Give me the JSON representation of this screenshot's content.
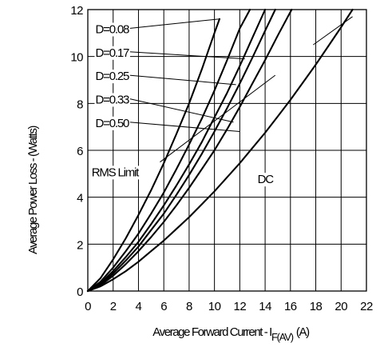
{
  "chart_data": {
    "type": "line",
    "title": "",
    "xlabel": "Average Forward Current - I",
    "xlabel_subscript": "F(AV)",
    "xlabel_unit": "(A)",
    "ylabel": "Average Power Loss - (Watts)",
    "xlim": [
      0,
      22
    ],
    "ylim": [
      0,
      12
    ],
    "x_ticks": [
      "0",
      "2",
      "4",
      "6",
      "8",
      "10",
      "12",
      "14",
      "16",
      "18",
      "20",
      "22"
    ],
    "y_ticks": [
      "0",
      "2",
      "4",
      "6",
      "8",
      "10",
      "12"
    ],
    "grid": true,
    "series": [
      {
        "name": "D=0.08",
        "points": [
          [
            0,
            0
          ],
          [
            1,
            0.55
          ],
          [
            2,
            1.35
          ],
          [
            3,
            2.25
          ],
          [
            4,
            3.25
          ],
          [
            5,
            4.3
          ],
          [
            6,
            5.45
          ],
          [
            7,
            6.7
          ],
          [
            8,
            8.0
          ],
          [
            9,
            9.45
          ],
          [
            10,
            11.0
          ],
          [
            10.4,
            11.6
          ]
        ]
      },
      {
        "name": "D=0.17",
        "points": [
          [
            0,
            0
          ],
          [
            1,
            0.4
          ],
          [
            2,
            1.0
          ],
          [
            3,
            1.7
          ],
          [
            4,
            2.45
          ],
          [
            5,
            3.3
          ],
          [
            6,
            4.2
          ],
          [
            7,
            5.2
          ],
          [
            8,
            6.25
          ],
          [
            9,
            7.35
          ],
          [
            10,
            8.55
          ],
          [
            11,
            9.85
          ],
          [
            12,
            11.2
          ],
          [
            12.8,
            12.0
          ]
        ]
      },
      {
        "name": "D=0.25",
        "points": [
          [
            0,
            0
          ],
          [
            1,
            0.33
          ],
          [
            2,
            0.85
          ],
          [
            3,
            1.45
          ],
          [
            4,
            2.1
          ],
          [
            5,
            2.85
          ],
          [
            6,
            3.65
          ],
          [
            7,
            4.5
          ],
          [
            8,
            5.4
          ],
          [
            9,
            6.35
          ],
          [
            10,
            7.4
          ],
          [
            11,
            8.45
          ],
          [
            12,
            9.6
          ],
          [
            13,
            10.8
          ],
          [
            14,
            12.0
          ]
        ]
      },
      {
        "name": "D=0.33",
        "points": [
          [
            0,
            0
          ],
          [
            1,
            0.28
          ],
          [
            2,
            0.75
          ],
          [
            3,
            1.3
          ],
          [
            4,
            1.9
          ],
          [
            5,
            2.6
          ],
          [
            6,
            3.3
          ],
          [
            7,
            4.1
          ],
          [
            8,
            4.95
          ],
          [
            9,
            5.85
          ],
          [
            10,
            6.8
          ],
          [
            11,
            7.8
          ],
          [
            12,
            8.85
          ],
          [
            13,
            9.95
          ],
          [
            14,
            11.1
          ],
          [
            14.8,
            12.0
          ]
        ]
      },
      {
        "name": "D=0.50",
        "points": [
          [
            0,
            0
          ],
          [
            1,
            0.25
          ],
          [
            2,
            0.65
          ],
          [
            3,
            1.15
          ],
          [
            4,
            1.7
          ],
          [
            5,
            2.3
          ],
          [
            6,
            2.95
          ],
          [
            7,
            3.65
          ],
          [
            8,
            4.4
          ],
          [
            9,
            5.2
          ],
          [
            10,
            6.0
          ],
          [
            11,
            6.9
          ],
          [
            12,
            7.85
          ],
          [
            13,
            8.85
          ],
          [
            14,
            9.85
          ],
          [
            15,
            10.9
          ],
          [
            16,
            11.9
          ],
          [
            16.1,
            12.0
          ]
        ]
      },
      {
        "name": "DC",
        "points": [
          [
            0,
            0
          ],
          [
            1,
            0.2
          ],
          [
            2,
            0.5
          ],
          [
            3,
            0.85
          ],
          [
            4,
            1.25
          ],
          [
            5,
            1.7
          ],
          [
            6,
            2.15
          ],
          [
            7,
            2.65
          ],
          [
            8,
            3.15
          ],
          [
            9,
            3.7
          ],
          [
            10,
            4.25
          ],
          [
            11,
            4.85
          ],
          [
            12,
            5.45
          ],
          [
            13,
            6.1
          ],
          [
            14,
            6.75
          ],
          [
            15,
            7.45
          ],
          [
            16,
            8.15
          ],
          [
            17,
            8.9
          ],
          [
            18,
            9.65
          ],
          [
            19,
            10.45
          ],
          [
            20,
            11.25
          ],
          [
            20.9,
            12.0
          ]
        ]
      }
    ],
    "rms_limit": {
      "label": "RMS Limit",
      "points": [
        [
          5.7,
          5.5
        ],
        [
          14.8,
          9.2
        ]
      ]
    },
    "annotations": [
      {
        "text": "D=0.08",
        "x": 0.6,
        "y": 11.2,
        "target": [
          10.4,
          11.6
        ]
      },
      {
        "text": "D=0.17",
        "x": 0.6,
        "y": 10.2,
        "target": [
          12.4,
          9.9
        ]
      },
      {
        "text": "D=0.25",
        "x": 0.6,
        "y": 9.2,
        "target": [
          11.7,
          8.8
        ]
      },
      {
        "text": "D=0.33",
        "x": 0.6,
        "y": 8.2,
        "target": [
          11.5,
          7.2
        ]
      },
      {
        "text": "D=0.50",
        "x": 0.6,
        "y": 7.2,
        "target": [
          12.0,
          6.8
        ]
      },
      {
        "text": "RMS Limit",
        "x": 0.3,
        "y": 5.1,
        "target": null
      },
      {
        "text": "DC",
        "x": 13.4,
        "y": 4.8,
        "target": null
      }
    ],
    "legend": "none"
  }
}
